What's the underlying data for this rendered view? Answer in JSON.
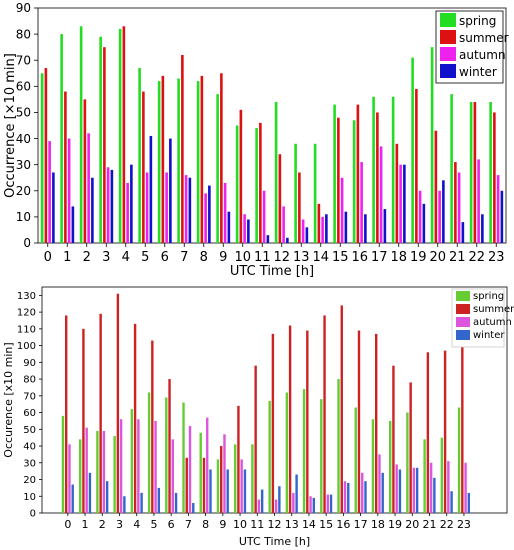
{
  "chart_data": [
    {
      "type": "bar",
      "title": "",
      "xlabel": "UTC Time [h]",
      "ylabel": "Occurrence [×10 min]",
      "ylim": [
        0,
        90
      ],
      "yticks": [
        0,
        10,
        20,
        30,
        40,
        50,
        60,
        70,
        80,
        90
      ],
      "grid": false,
      "legend": "top-right",
      "categories": [
        "0",
        "1",
        "2",
        "3",
        "4",
        "5",
        "6",
        "7",
        "8",
        "9",
        "10",
        "11",
        "12",
        "13",
        "14",
        "15",
        "16",
        "17",
        "18",
        "19",
        "20",
        "21",
        "22",
        "23"
      ],
      "series": [
        {
          "name": "spring",
          "color": "#22dd22",
          "values": [
            65,
            80,
            83,
            79,
            82,
            67,
            62,
            63,
            62,
            57,
            45,
            44,
            54,
            38,
            38,
            53,
            47,
            56,
            56,
            71,
            75,
            57,
            54,
            54
          ]
        },
        {
          "name": "summer",
          "color": "#dd1111",
          "values": [
            67,
            58,
            55,
            75,
            83,
            58,
            64,
            72,
            64,
            65,
            51,
            46,
            34,
            27,
            15,
            48,
            53,
            50,
            38,
            59,
            43,
            31,
            54,
            50
          ]
        },
        {
          "name": "autumn",
          "color": "#ee22ee",
          "values": [
            39,
            40,
            42,
            29,
            23,
            27,
            27,
            26,
            19,
            23,
            11,
            20,
            14,
            9,
            10,
            25,
            31,
            37,
            30,
            20,
            20,
            27,
            32,
            26
          ]
        },
        {
          "name": "winter",
          "color": "#1111cc",
          "values": [
            27,
            14,
            25,
            28,
            30,
            41,
            40,
            25,
            22,
            12,
            9,
            3,
            2,
            6,
            11,
            12,
            11,
            13,
            30,
            15,
            24,
            8,
            11,
            20
          ]
        }
      ]
    },
    {
      "type": "bar",
      "title": "",
      "xlabel": "UTC Time [h]",
      "ylabel": "Occurence [x10 min]",
      "ylim": [
        0,
        135
      ],
      "yticks": [
        0,
        10,
        20,
        30,
        40,
        50,
        60,
        70,
        80,
        90,
        100,
        110,
        120,
        130
      ],
      "grid": false,
      "legend": "top-right",
      "categories": [
        "0",
        "1",
        "2",
        "3",
        "4",
        "5",
        "6",
        "7",
        "8",
        "9",
        "10",
        "11",
        "12",
        "13",
        "14",
        "15",
        "16",
        "17",
        "18",
        "19",
        "20",
        "21",
        "22",
        "23"
      ],
      "series": [
        {
          "name": "spring",
          "color": "#66cc33",
          "values": [
            58,
            44,
            49,
            46,
            62,
            72,
            69,
            66,
            48,
            32,
            41,
            41,
            67,
            72,
            74,
            68,
            80,
            63,
            56,
            55,
            60,
            44,
            45,
            63
          ]
        },
        {
          "name": "summer",
          "color": "#cc2222",
          "values": [
            118,
            110,
            119,
            131,
            113,
            103,
            80,
            33,
            33,
            40,
            64,
            88,
            107,
            112,
            109,
            118,
            124,
            109,
            107,
            88,
            78,
            96,
            97,
            101
          ]
        },
        {
          "name": "autumn",
          "color": "#dd55dd",
          "values": [
            41,
            51,
            49,
            56,
            56,
            55,
            44,
            52,
            57,
            47,
            32,
            8,
            8,
            12,
            10,
            11,
            19,
            24,
            35,
            29,
            27,
            30,
            31,
            30
          ]
        },
        {
          "name": "winter",
          "color": "#3366cc",
          "values": [
            17,
            24,
            19,
            10,
            12,
            15,
            12,
            6,
            26,
            26,
            26,
            14,
            16,
            23,
            9,
            11,
            18,
            19,
            24,
            26,
            27,
            21,
            13,
            12
          ]
        }
      ]
    }
  ]
}
